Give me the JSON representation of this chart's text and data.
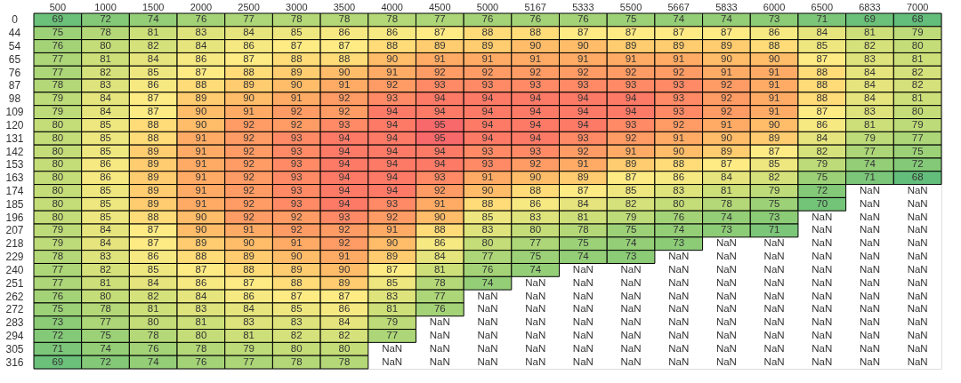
{
  "chart_data": {
    "type": "heatmap",
    "categories": [
      "500",
      "1000",
      "1500",
      "2000",
      "2500",
      "3000",
      "3500",
      "4000",
      "4500",
      "5000",
      "5167",
      "5333",
      "5500",
      "5667",
      "5833",
      "6000",
      "6500",
      "6833",
      "7000"
    ],
    "y_categories": [
      "0",
      "44",
      "54",
      "65",
      "76",
      "87",
      "98",
      "109",
      "120",
      "131",
      "142",
      "153",
      "163",
      "174",
      "185",
      "196",
      "207",
      "218",
      "229",
      "240",
      "251",
      "262",
      "272",
      "283",
      "294",
      "305",
      "316"
    ],
    "colors": [
      "#63be7b",
      "#ffeb84",
      "#f8696b"
    ],
    "cells": [
      [
        69,
        72,
        74,
        76,
        77,
        78,
        78,
        78,
        77,
        76,
        76,
        76,
        75,
        74,
        74,
        73,
        71,
        69,
        68
      ],
      [
        75,
        78,
        81,
        83,
        84,
        85,
        86,
        86,
        87,
        88,
        88,
        87,
        87,
        87,
        87,
        86,
        84,
        81,
        79
      ],
      [
        76,
        80,
        82,
        84,
        86,
        87,
        87,
        88,
        89,
        89,
        90,
        90,
        89,
        89,
        89,
        88,
        85,
        82,
        80
      ],
      [
        77,
        81,
        84,
        86,
        87,
        88,
        88,
        90,
        91,
        91,
        91,
        91,
        91,
        91,
        90,
        90,
        87,
        83,
        81
      ],
      [
        77,
        82,
        85,
        87,
        88,
        89,
        90,
        91,
        92,
        92,
        92,
        92,
        92,
        92,
        91,
        91,
        88,
        84,
        82
      ],
      [
        78,
        83,
        86,
        88,
        89,
        90,
        91,
        92,
        93,
        93,
        93,
        93,
        93,
        93,
        92,
        91,
        88,
        84,
        82
      ],
      [
        79,
        84,
        87,
        89,
        90,
        91,
        92,
        93,
        94,
        94,
        94,
        94,
        94,
        93,
        92,
        91,
        88,
        84,
        81
      ],
      [
        79,
        84,
        87,
        90,
        91,
        92,
        92,
        94,
        94,
        94,
        94,
        94,
        94,
        93,
        92,
        91,
        87,
        83,
        80
      ],
      [
        80,
        85,
        88,
        90,
        92,
        92,
        93,
        94,
        95,
        94,
        94,
        94,
        93,
        92,
        91,
        90,
        86,
        81,
        79
      ],
      [
        80,
        85,
        88,
        91,
        92,
        93,
        94,
        94,
        95,
        94,
        94,
        93,
        92,
        91,
        90,
        89,
        84,
        79,
        77
      ],
      [
        80,
        85,
        89,
        91,
        92,
        93,
        94,
        94,
        94,
        93,
        93,
        92,
        91,
        90,
        89,
        87,
        82,
        77,
        75
      ],
      [
        80,
        86,
        89,
        91,
        92,
        93,
        94,
        94,
        94,
        93,
        92,
        91,
        89,
        88,
        87,
        85,
        79,
        74,
        72
      ],
      [
        80,
        86,
        89,
        91,
        92,
        93,
        94,
        94,
        93,
        91,
        90,
        89,
        87,
        86,
        84,
        82,
        75,
        71,
        68
      ],
      [
        80,
        85,
        89,
        91,
        92,
        93,
        94,
        94,
        92,
        90,
        88,
        87,
        85,
        83,
        81,
        79,
        72,
        null,
        null
      ],
      [
        80,
        85,
        89,
        91,
        92,
        93,
        94,
        93,
        91,
        88,
        86,
        84,
        82,
        80,
        78,
        75,
        70,
        null,
        null
      ],
      [
        80,
        85,
        88,
        90,
        92,
        92,
        93,
        92,
        90,
        85,
        83,
        81,
        79,
        76,
        74,
        73,
        null,
        null,
        null
      ],
      [
        79,
        84,
        87,
        90,
        91,
        92,
        92,
        91,
        88,
        83,
        80,
        78,
        75,
        74,
        73,
        71,
        null,
        null,
        null
      ],
      [
        79,
        84,
        87,
        89,
        90,
        91,
        92,
        90,
        86,
        80,
        77,
        75,
        74,
        73,
        null,
        null,
        null,
        null,
        null
      ],
      [
        78,
        83,
        86,
        88,
        89,
        90,
        91,
        89,
        84,
        77,
        75,
        74,
        73,
        null,
        null,
        null,
        null,
        null,
        null
      ],
      [
        77,
        82,
        85,
        87,
        88,
        89,
        90,
        87,
        81,
        76,
        74,
        null,
        null,
        null,
        null,
        null,
        null,
        null,
        null
      ],
      [
        77,
        81,
        84,
        86,
        87,
        88,
        89,
        85,
        78,
        74,
        null,
        null,
        null,
        null,
        null,
        null,
        null,
        null,
        null
      ],
      [
        76,
        80,
        82,
        84,
        86,
        87,
        87,
        83,
        77,
        null,
        null,
        null,
        null,
        null,
        null,
        null,
        null,
        null,
        null
      ],
      [
        75,
        78,
        81,
        83,
        84,
        85,
        86,
        81,
        76,
        null,
        null,
        null,
        null,
        null,
        null,
        null,
        null,
        null,
        null
      ],
      [
        73,
        77,
        80,
        81,
        83,
        83,
        84,
        79,
        null,
        null,
        null,
        null,
        null,
        null,
        null,
        null,
        null,
        null,
        null
      ],
      [
        72,
        75,
        78,
        80,
        81,
        82,
        82,
        77,
        null,
        null,
        null,
        null,
        null,
        null,
        null,
        null,
        null,
        null,
        null
      ],
      [
        71,
        74,
        76,
        78,
        79,
        80,
        80,
        null,
        null,
        null,
        null,
        null,
        null,
        null,
        null,
        null,
        null,
        null,
        null
      ],
      [
        69,
        72,
        74,
        76,
        77,
        78,
        78,
        null,
        null,
        null,
        null,
        null,
        null,
        null,
        null,
        null,
        null,
        null,
        null
      ]
    ],
    "cell_labels": [
      [
        "69",
        "72",
        "74",
        "76",
        "77",
        "78",
        "78",
        "78",
        "77",
        "76",
        "76",
        "76",
        "75",
        "74",
        "74",
        "73",
        "71",
        "69",
        "68"
      ],
      [
        "75",
        "78",
        "81",
        "83",
        "84",
        "85",
        "86",
        "86",
        "87",
        "88",
        "88",
        "87",
        "87",
        "87",
        "87",
        "86",
        "84",
        "81",
        "79"
      ],
      [
        "76",
        "80",
        "82",
        "84",
        "86",
        "87",
        "87",
        "88",
        "89",
        "89",
        "90",
        "90",
        "89",
        "89",
        "89",
        "88",
        "85",
        "82",
        "80"
      ],
      [
        "77",
        "81",
        "84",
        "86",
        "87",
        "88",
        "88",
        "90",
        "91",
        "91",
        "91",
        "91",
        "91",
        "91",
        "90",
        "90",
        "87",
        "83",
        "81"
      ],
      [
        "77",
        "82",
        "85",
        "87",
        "88",
        "89",
        "90",
        "91",
        "92",
        "92",
        "92",
        "92",
        "92",
        "92",
        "91",
        "91",
        "88",
        "84",
        "82"
      ],
      [
        "78",
        "83",
        "86",
        "88",
        "89",
        "90",
        "91",
        "92",
        "93",
        "93",
        "93",
        "93",
        "93",
        "93",
        "92",
        "91",
        "88",
        "84",
        "82"
      ],
      [
        "79",
        "84",
        "87",
        "89",
        "90",
        "91",
        "92",
        "93",
        "94",
        "94",
        "94",
        "94",
        "94",
        "93",
        "92",
        "91",
        "88",
        "84",
        "81"
      ],
      [
        "79",
        "84",
        "87",
        "90",
        "91",
        "92",
        "92",
        "94",
        "94",
        "94",
        "94",
        "94",
        "94",
        "93",
        "92",
        "91",
        "87",
        "83",
        "80"
      ],
      [
        "80",
        "85",
        "88",
        "90",
        "92",
        "92",
        "93",
        "94",
        "95",
        "94",
        "94",
        "94",
        "93",
        "92",
        "91",
        "90",
        "86",
        "81",
        "79"
      ],
      [
        "80",
        "85",
        "88",
        "91",
        "92",
        "93",
        "94",
        "94",
        "95",
        "94",
        "94",
        "93",
        "92",
        "91",
        "90",
        "89",
        "84",
        "79",
        "77"
      ],
      [
        "80",
        "85",
        "89",
        "91",
        "92",
        "93",
        "94",
        "94",
        "94",
        "93",
        "93",
        "92",
        "91",
        "90",
        "89",
        "87",
        "82",
        "77",
        "75"
      ],
      [
        "80",
        "86",
        "89",
        "91",
        "92",
        "93",
        "94",
        "94",
        "94",
        "93",
        "92",
        "91",
        "89",
        "88",
        "87",
        "85",
        "79",
        "74",
        "72"
      ],
      [
        "80",
        "86",
        "89",
        "91",
        "92",
        "93",
        "94",
        "94",
        "93",
        "91",
        "90",
        "89",
        "87",
        "86",
        "84",
        "82",
        "75",
        "71",
        "68"
      ],
      [
        "80",
        "85",
        "89",
        "91",
        "92",
        "93",
        "94",
        "94",
        "92",
        "90",
        "88",
        "87",
        "85",
        "83",
        "81",
        "79",
        "72",
        "NaN",
        "NaN"
      ],
      [
        "80",
        "85",
        "89",
        "91",
        "92",
        "93",
        "94",
        "93",
        "91",
        "88",
        "86",
        "84",
        "82",
        "80",
        "78",
        "75",
        "70",
        "NaN",
        "NaN"
      ],
      [
        "80",
        "85",
        "88",
        "90",
        "92",
        "92",
        "93",
        "92",
        "90",
        "85",
        "83",
        "81",
        "79",
        "76",
        "74",
        "73",
        "NaN",
        "NaN",
        "NaN"
      ],
      [
        "79",
        "84",
        "87",
        "90",
        "91",
        "92",
        "92",
        "91",
        "88",
        "83",
        "80",
        "78",
        "75",
        "74",
        "73",
        "71",
        "NaN",
        "NaN",
        "NaN"
      ],
      [
        "79",
        "84",
        "87",
        "89",
        "90",
        "91",
        "92",
        "90",
        "86",
        "80",
        "77",
        "75",
        "74",
        "73",
        "NaN",
        "NaN",
        "NaN",
        "NaN",
        "NaN"
      ],
      [
        "78",
        "83",
        "86",
        "88",
        "89",
        "90",
        "91",
        "89",
        "84",
        "77",
        "75",
        "74",
        "73",
        "NaN",
        "NaN",
        "NaN",
        "NaN",
        "NaN",
        "NaN"
      ],
      [
        "77",
        "82",
        "85",
        "87",
        "88",
        "89",
        "90",
        "87",
        "81",
        "76",
        "74",
        "NaN",
        "NaN",
        "NaN",
        "NaN",
        "NaN",
        "NaN",
        "NaN",
        "NaN"
      ],
      [
        "77",
        "81",
        "84",
        "86",
        "87",
        "88",
        "89",
        "85",
        "78",
        "74",
        "NaN",
        "NaN",
        "NaN",
        "NaN",
        "NaN",
        "NaN",
        "NaN",
        "NaN",
        "NaN"
      ],
      [
        "76",
        "80",
        "82",
        "84",
        "86",
        "87",
        "87",
        "83",
        "77",
        "NaN",
        "NaN",
        "NaN",
        "NaN",
        "NaN",
        "NaN",
        "NaN",
        "NaN",
        "NaN",
        "NaN"
      ],
      [
        "75",
        "78",
        "81",
        "83",
        "84",
        "85",
        "86",
        "81",
        "76",
        "NaN",
        "NaN",
        "NaN",
        "NaN",
        "NaN",
        "NaN",
        "NaN",
        "NaN",
        "NaN",
        "NaN"
      ],
      [
        "73",
        "77",
        "80",
        "81",
        "83",
        "83",
        "84",
        "79",
        "NaN",
        "NaN",
        "NaN",
        "NaN",
        "NaN",
        "NaN",
        "NaN",
        "NaN",
        "NaN",
        "NaN",
        "NaN"
      ],
      [
        "72",
        "75",
        "78",
        "80",
        "81",
        "82",
        "82",
        "77",
        "NaN",
        "NaN",
        "NaN",
        "NaN",
        "NaN",
        "NaN",
        "NaN",
        "NaN",
        "NaN",
        "NaN",
        "NaN"
      ],
      [
        "71",
        "74",
        "76",
        "78",
        "79",
        "80",
        "80",
        "NaN",
        "NaN",
        "NaN",
        "NaN",
        "NaN",
        "NaN",
        "NaN",
        "NaN",
        "NaN",
        "NaN",
        "NaN",
        "NaN"
      ],
      [
        "69",
        "72",
        "74",
        "76",
        "77",
        "78",
        "78",
        "NaN",
        "NaN",
        "NaN",
        "NaN",
        "NaN",
        "NaN",
        "NaN",
        "NaN",
        "NaN",
        "NaN",
        "NaN",
        "NaN"
      ]
    ]
  }
}
